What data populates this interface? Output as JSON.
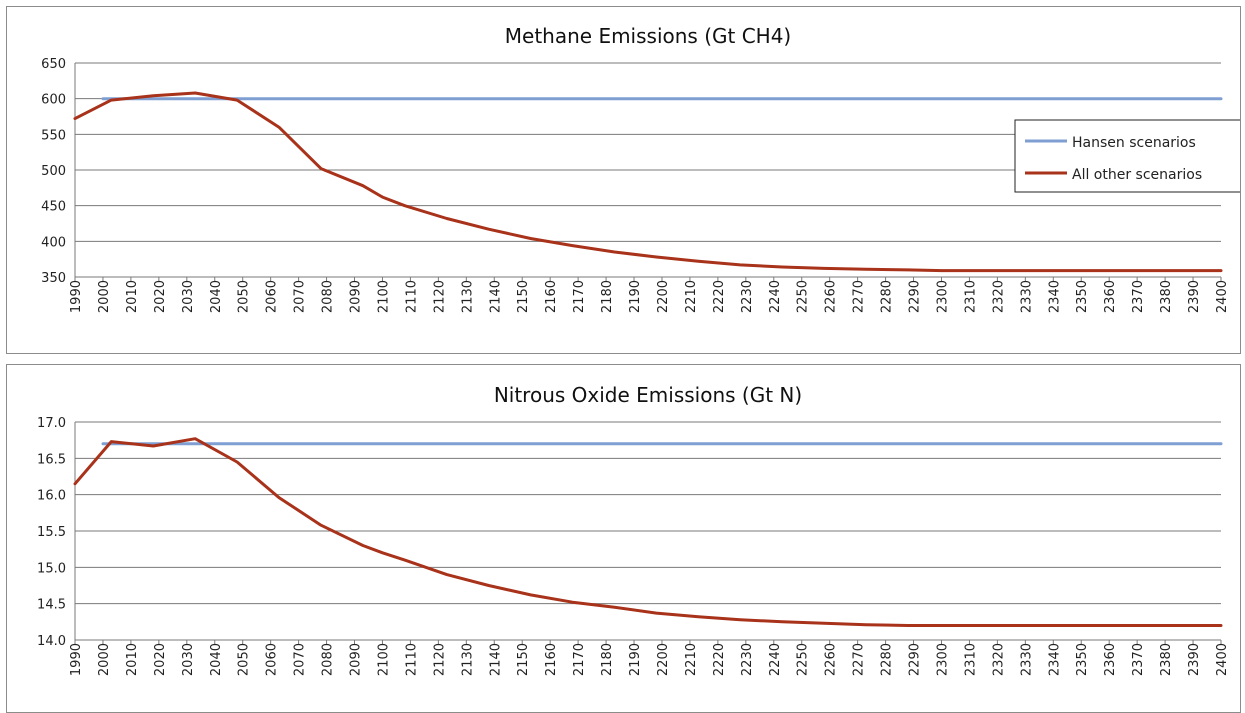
{
  "chart_data": [
    {
      "type": "line",
      "title": "Methane Emissions (Gt CH4)",
      "xlabel": "",
      "ylabel": "",
      "ylim": [
        350,
        650
      ],
      "yticks": [
        350,
        400,
        450,
        500,
        550,
        600,
        650
      ],
      "x": [
        1990,
        2000,
        2010,
        2020,
        2030,
        2040,
        2050,
        2060,
        2070,
        2080,
        2090,
        2100,
        2110,
        2120,
        2130,
        2140,
        2150,
        2160,
        2170,
        2180,
        2190,
        2200,
        2210,
        2220,
        2230,
        2240,
        2250,
        2260,
        2270,
        2280,
        2290,
        2300,
        2310,
        2320,
        2330,
        2340,
        2350,
        2360,
        2370,
        2380,
        2390,
        2400
      ],
      "grid": true,
      "legend": "right",
      "series": [
        {
          "name": "Hansen scenarios",
          "color": "#7f9fd3",
          "x": [
            2000,
            2400
          ],
          "values": [
            600,
            600
          ]
        },
        {
          "name": "All other scenarios",
          "color": "#a8321a",
          "x": [
            1990,
            2003,
            2018,
            2033,
            2048,
            2063,
            2078,
            2093,
            2100,
            2108,
            2123,
            2138,
            2153,
            2168,
            2183,
            2198,
            2213,
            2228,
            2243,
            2258,
            2273,
            2288,
            2300,
            2318,
            2333,
            2348,
            2363,
            2378,
            2393,
            2400
          ],
          "values": [
            572,
            598,
            604,
            608,
            598,
            560,
            502,
            478,
            462,
            450,
            432,
            417,
            404,
            394,
            385,
            378,
            372,
            367,
            364,
            362,
            361,
            360,
            359,
            359,
            359,
            359,
            359,
            359,
            359,
            359
          ]
        }
      ]
    },
    {
      "type": "line",
      "title": "Nitrous Oxide Emissions (Gt N)",
      "xlabel": "",
      "ylabel": "",
      "ylim": [
        14.0,
        17.0
      ],
      "yticks": [
        "14.0",
        "14.5",
        "15.0",
        "15.5",
        "16.0",
        "16.5",
        "17.0"
      ],
      "x": [
        1990,
        2000,
        2010,
        2020,
        2030,
        2040,
        2050,
        2060,
        2070,
        2080,
        2090,
        2100,
        2110,
        2120,
        2130,
        2140,
        2150,
        2160,
        2170,
        2180,
        2190,
        2200,
        2210,
        2220,
        2230,
        2240,
        2250,
        2260,
        2270,
        2280,
        2290,
        2300,
        2310,
        2320,
        2330,
        2340,
        2350,
        2360,
        2370,
        2380,
        2390,
        2400
      ],
      "grid": true,
      "legend": "none",
      "series": [
        {
          "name": "Hansen scenarios",
          "color": "#7f9fd3",
          "x": [
            2000,
            2400
          ],
          "values": [
            16.7,
            16.7
          ]
        },
        {
          "name": "All other scenarios",
          "color": "#a8321a",
          "x": [
            1990,
            2003,
            2018,
            2033,
            2048,
            2063,
            2078,
            2093,
            2100,
            2108,
            2123,
            2138,
            2153,
            2168,
            2183,
            2198,
            2213,
            2228,
            2243,
            2258,
            2273,
            2288,
            2300,
            2318,
            2333,
            2348,
            2363,
            2378,
            2393,
            2400
          ],
          "values": [
            16.15,
            16.73,
            16.67,
            16.77,
            16.45,
            15.96,
            15.58,
            15.3,
            15.2,
            15.1,
            14.9,
            14.75,
            14.62,
            14.52,
            14.45,
            14.37,
            14.32,
            14.28,
            14.25,
            14.23,
            14.21,
            14.2,
            14.2,
            14.2,
            14.2,
            14.2,
            14.2,
            14.2,
            14.2,
            14.2
          ]
        }
      ]
    }
  ]
}
